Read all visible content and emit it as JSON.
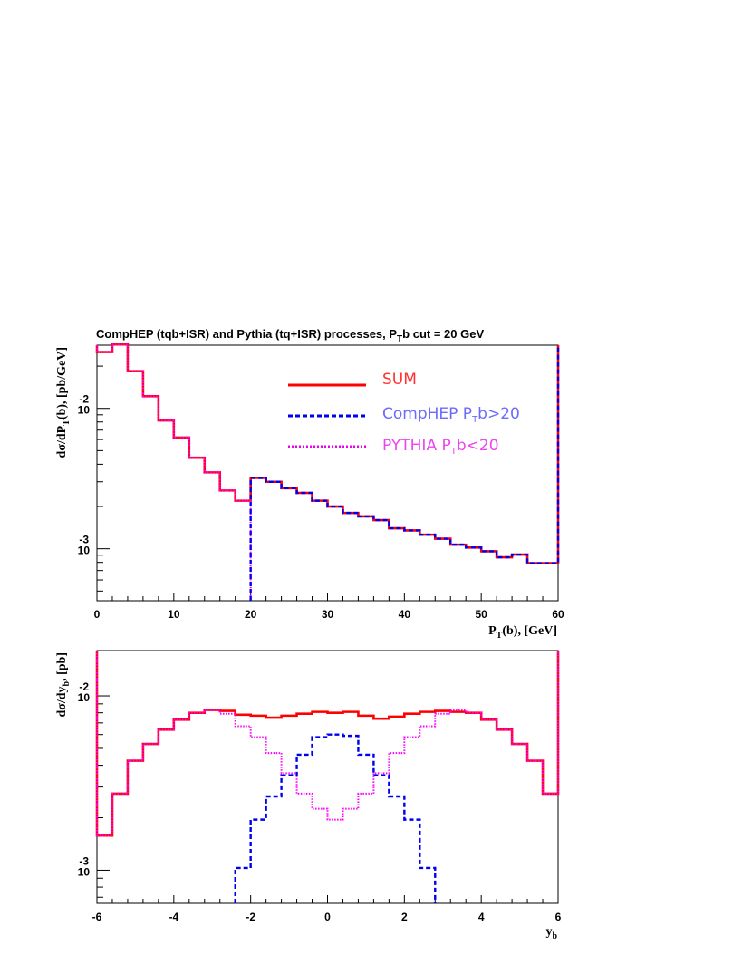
{
  "title": {
    "main": "CompHEP (tqb+ISR) and Pythia (tq+ISR) processes, P",
    "sub": "T",
    "rest": "b cut = 20 GeV"
  },
  "legend": [
    {
      "label": "SUM",
      "color": "#ff3333",
      "line_color": "#ff0000",
      "style": "solid"
    },
    {
      "label": "CompHEP P",
      "sub": "T",
      "rest": "b>20",
      "color": "#6b6bff",
      "line_color": "#0000ee",
      "style": "dashed"
    },
    {
      "label": "PYTHIA P",
      "sub": "T",
      "rest": "b<20",
      "color": "#ee44ee",
      "line_color": "#ee00ee",
      "style": "dotted"
    }
  ],
  "colors": {
    "sum": "#ff0000",
    "comphep": "#0000ee",
    "pythia": "#ff00ff"
  },
  "chart_data": [
    {
      "type": "line",
      "histogram": true,
      "xlabel": {
        "main": "P",
        "sub": "T",
        "rest": "(b), [GeV]"
      },
      "ylabel": {
        "main": "dσ/dP",
        "sub": "T",
        "rest": "(b), [pb/GeV]"
      },
      "xlim": [
        0,
        60
      ],
      "ylim_log10": [
        -3.37,
        -1.55
      ],
      "y_scale": "log",
      "x_ticks": [
        "0",
        "10",
        "20",
        "30",
        "40",
        "50",
        "60"
      ],
      "y_ticks": [
        {
          "base": "10",
          "exp": "-3"
        },
        {
          "base": "10",
          "exp": "-2"
        }
      ],
      "bin_edges": [
        0,
        2,
        4,
        6,
        8,
        10,
        12,
        14,
        16,
        18,
        20,
        22,
        24,
        26,
        28,
        30,
        32,
        34,
        36,
        38,
        40,
        42,
        44,
        46,
        48,
        50,
        52,
        54,
        56,
        58,
        60
      ],
      "series": [
        {
          "name": "SUM",
          "values": [
            0.0252,
            0.0285,
            0.0184,
            0.0122,
            0.0082,
            0.0062,
            0.00445,
            0.0035,
            0.0026,
            0.0022,
            0.0032,
            0.003,
            0.0027,
            0.0025,
            0.0022,
            0.002,
            0.0018,
            0.0017,
            0.0016,
            0.0014,
            0.00135,
            0.00126,
            0.00118,
            0.00107,
            0.00102,
            0.00096,
            0.00087,
            0.00091,
            0.00079,
            0.00079
          ]
        },
        {
          "name": "CompHEP P_Tb>20",
          "values": [
            null,
            null,
            null,
            null,
            null,
            null,
            null,
            null,
            null,
            null,
            0.0032,
            0.003,
            0.0027,
            0.0025,
            0.0022,
            0.002,
            0.0018,
            0.0017,
            0.0016,
            0.0014,
            0.00135,
            0.00126,
            0.00118,
            0.00107,
            0.00102,
            0.00096,
            0.00087,
            0.00091,
            0.00079,
            0.00079
          ]
        },
        {
          "name": "PYTHIA P_Tb<20",
          "values": [
            0.0252,
            0.0285,
            0.0184,
            0.0122,
            0.0082,
            0.0062,
            0.00445,
            0.0035,
            0.0026,
            0.0022,
            null,
            null,
            null,
            null,
            null,
            null,
            null,
            null,
            null,
            null,
            null,
            null,
            null,
            null,
            null,
            null,
            null,
            null,
            null,
            null
          ]
        }
      ]
    },
    {
      "type": "line",
      "histogram": true,
      "xlabel": {
        "main": "y",
        "sub": "b",
        "rest": ""
      },
      "ylabel": {
        "main": "dσ/dy",
        "sub": "b",
        "rest": ", [pb]"
      },
      "xlim": [
        -6,
        6
      ],
      "ylim_log10": [
        -3.19,
        -1.74
      ],
      "y_scale": "log",
      "x_ticks": [
        "-6",
        "-4",
        "-2",
        "0",
        "2",
        "4",
        "6"
      ],
      "y_ticks": [
        {
          "base": "10",
          "exp": "-3"
        },
        {
          "base": "10",
          "exp": "-2"
        }
      ],
      "bin_edges": [
        -6.0,
        -5.6,
        -5.2,
        -4.8,
        -4.4,
        -4.0,
        -3.6,
        -3.2,
        -2.8,
        -2.4,
        -2.0,
        -1.6,
        -1.2,
        -0.8,
        -0.4,
        0.0,
        0.4,
        0.8,
        1.2,
        1.6,
        2.0,
        2.4,
        2.8,
        3.2,
        3.6,
        4.0,
        4.4,
        4.8,
        5.2,
        5.6,
        6.0
      ],
      "series": [
        {
          "name": "SUM",
          "values": [
            0.00158,
            0.00275,
            0.00425,
            0.0053,
            0.0064,
            0.0073,
            0.008,
            0.0083,
            0.0082,
            0.0078,
            0.0077,
            0.0075,
            0.0077,
            0.0079,
            0.0081,
            0.008,
            0.0081,
            0.0077,
            0.0074,
            0.0076,
            0.0079,
            0.0081,
            0.0082,
            0.0081,
            0.008,
            0.0073,
            0.0064,
            0.0053,
            0.00425,
            0.00275
          ]
        },
        {
          "name": "CompHEP P_Tb>20",
          "values": [
            null,
            null,
            null,
            null,
            null,
            null,
            null,
            null,
            null,
            0.00103,
            0.00195,
            0.00265,
            0.0035,
            0.0046,
            0.0058,
            0.006,
            0.0059,
            0.0046,
            0.0035,
            0.00265,
            0.00195,
            0.00103,
            null,
            null,
            null,
            null,
            null,
            null,
            null,
            null
          ]
        },
        {
          "name": "PYTHIA P_Tb<20",
          "values": [
            0.00158,
            0.00275,
            0.00425,
            0.0053,
            0.0064,
            0.0073,
            0.008,
            0.0083,
            0.0079,
            0.0067,
            0.0058,
            0.0047,
            0.0036,
            0.00275,
            0.00225,
            0.00195,
            0.00225,
            0.00275,
            0.0036,
            0.0047,
            0.0058,
            0.0067,
            0.0079,
            0.0083,
            0.008,
            0.0073,
            0.0064,
            0.0053,
            0.00425,
            0.00275
          ]
        }
      ]
    }
  ]
}
